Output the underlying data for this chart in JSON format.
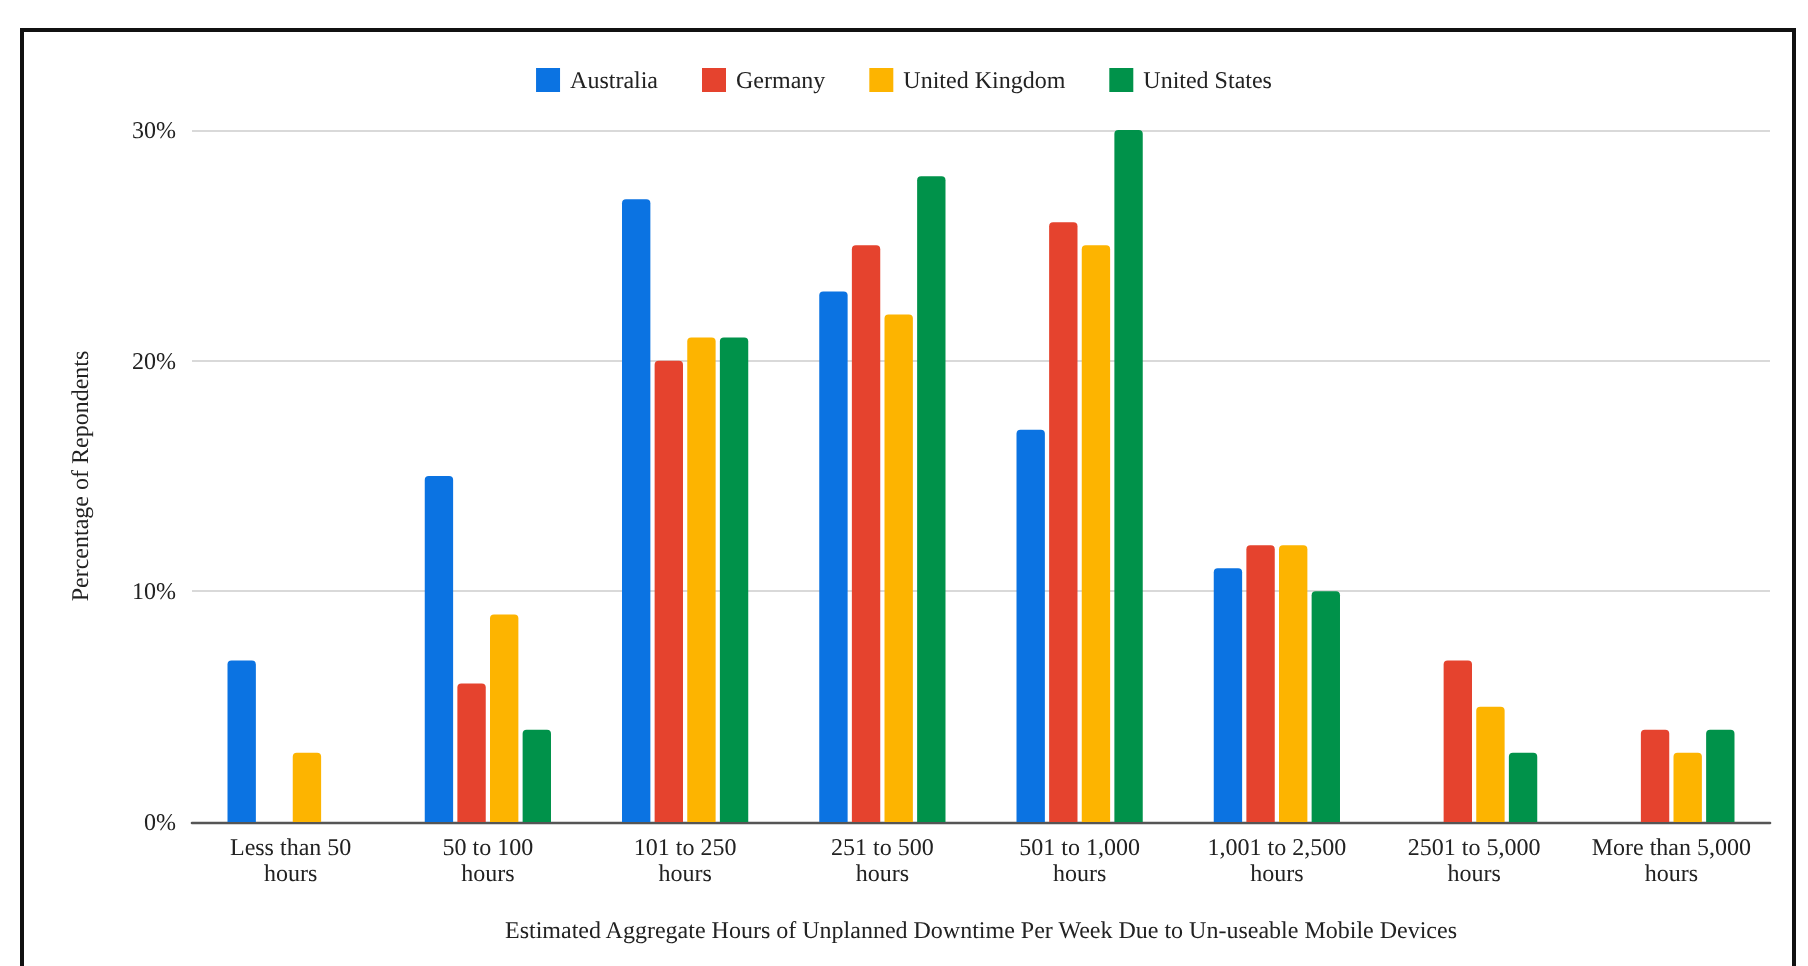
{
  "chart_data": {
    "type": "bar",
    "xlabel": "Estimated Aggregate Hours of Unplanned Downtime Per Week Due to Un-useable Mobile Devices",
    "ylabel": "Percentage of Repondents",
    "categories": [
      "Less than 50 hours",
      "50 to 100 hours",
      "101 to 250 hours",
      "251 to 500 hours",
      "501 to 1,000 hours",
      "1,001 to 2,500 hours",
      "2501 to 5,000 hours",
      "More than 5,000 hours"
    ],
    "series": [
      {
        "name": "Australia",
        "color": "#0b73e2",
        "values": [
          7,
          15,
          27,
          23,
          17,
          11,
          null,
          null
        ]
      },
      {
        "name": "Germany",
        "color": "#e5432e",
        "values": [
          null,
          6,
          20,
          25,
          26,
          12,
          7,
          4
        ]
      },
      {
        "name": "United Kingdom",
        "color": "#fdb400",
        "values": [
          3,
          9,
          21,
          22,
          25,
          12,
          5,
          3
        ]
      },
      {
        "name": "United States",
        "color": "#00924a",
        "values": [
          null,
          4,
          21,
          28,
          30,
          10,
          3,
          4
        ]
      }
    ],
    "ylim": [
      0,
      30
    ],
    "yticks": [
      {
        "value": 0,
        "label": "0%"
      },
      {
        "value": 10,
        "label": "10%"
      },
      {
        "value": 20,
        "label": "20%"
      },
      {
        "value": 30,
        "label": "30%"
      }
    ],
    "grid": "y",
    "legend": "top"
  }
}
